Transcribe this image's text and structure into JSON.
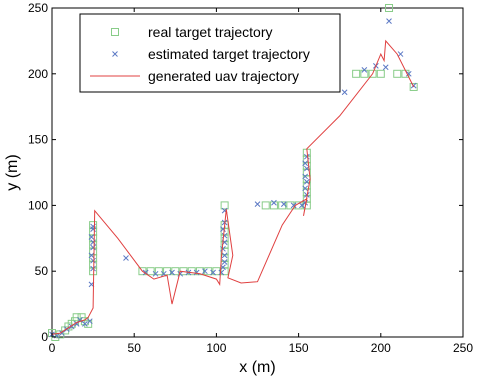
{
  "chart_data": {
    "type": "scatter",
    "xlabel": "x (m)",
    "ylabel": "y (m)",
    "xlim": [
      0,
      250
    ],
    "ylim": [
      0,
      250
    ],
    "xticks": [
      0,
      50,
      100,
      150,
      200,
      250
    ],
    "yticks": [
      0,
      50,
      100,
      150,
      200,
      250
    ],
    "grid": false,
    "legend_position": "top-left",
    "series": [
      {
        "name": "real target trajectory",
        "marker": "square",
        "color": "#88cc88",
        "points": [
          [
            0,
            3
          ],
          [
            2,
            0
          ],
          [
            5,
            2
          ],
          [
            8,
            5
          ],
          [
            10,
            8
          ],
          [
            12,
            10
          ],
          [
            14,
            12
          ],
          [
            15,
            15
          ],
          [
            18,
            15
          ],
          [
            20,
            12
          ],
          [
            22,
            10
          ],
          [
            25,
            50
          ],
          [
            25,
            55
          ],
          [
            25,
            60
          ],
          [
            25,
            65
          ],
          [
            25,
            70
          ],
          [
            25,
            75
          ],
          [
            25,
            80
          ],
          [
            25,
            85
          ],
          [
            55,
            50
          ],
          [
            60,
            50
          ],
          [
            65,
            50
          ],
          [
            70,
            50
          ],
          [
            75,
            50
          ],
          [
            80,
            50
          ],
          [
            85,
            50
          ],
          [
            90,
            50
          ],
          [
            95,
            50
          ],
          [
            100,
            50
          ],
          [
            105,
            50
          ],
          [
            105,
            55
          ],
          [
            105,
            60
          ],
          [
            105,
            65
          ],
          [
            105,
            70
          ],
          [
            105,
            75
          ],
          [
            105,
            80
          ],
          [
            105,
            85
          ],
          [
            105,
            100
          ],
          [
            130,
            100
          ],
          [
            135,
            100
          ],
          [
            140,
            100
          ],
          [
            145,
            100
          ],
          [
            150,
            100
          ],
          [
            155,
            100
          ],
          [
            155,
            105
          ],
          [
            155,
            110
          ],
          [
            155,
            115
          ],
          [
            155,
            120
          ],
          [
            155,
            125
          ],
          [
            155,
            130
          ],
          [
            155,
            135
          ],
          [
            155,
            140
          ],
          [
            185,
            200
          ],
          [
            190,
            200
          ],
          [
            195,
            200
          ],
          [
            200,
            200
          ],
          [
            205,
            250
          ],
          [
            210,
            200
          ],
          [
            215,
            200
          ],
          [
            220,
            190
          ]
        ]
      },
      {
        "name": "estimated target trajectory",
        "marker": "x",
        "color": "#5b78c4",
        "points": [
          [
            0,
            2
          ],
          [
            3,
            1
          ],
          [
            6,
            3
          ],
          [
            9,
            6
          ],
          [
            12,
            8
          ],
          [
            15,
            10
          ],
          [
            17,
            13
          ],
          [
            20,
            10
          ],
          [
            23,
            12
          ],
          [
            24,
            40
          ],
          [
            25,
            52
          ],
          [
            25,
            58
          ],
          [
            24,
            62
          ],
          [
            25,
            68
          ],
          [
            25,
            72
          ],
          [
            24,
            76
          ],
          [
            25,
            82
          ],
          [
            25,
            84
          ],
          [
            45,
            60
          ],
          [
            57,
            49
          ],
          [
            63,
            48
          ],
          [
            68,
            48
          ],
          [
            73,
            49
          ],
          [
            78,
            48
          ],
          [
            83,
            49
          ],
          [
            88,
            49
          ],
          [
            93,
            50
          ],
          [
            98,
            49
          ],
          [
            103,
            49
          ],
          [
            104,
            53
          ],
          [
            105,
            57
          ],
          [
            105,
            62
          ],
          [
            104,
            67
          ],
          [
            105,
            72
          ],
          [
            105,
            77
          ],
          [
            104,
            82
          ],
          [
            105,
            87
          ],
          [
            105,
            96
          ],
          [
            125,
            101
          ],
          [
            135,
            102
          ],
          [
            141,
            101
          ],
          [
            147,
            100
          ],
          [
            152,
            100
          ],
          [
            154,
            102
          ],
          [
            155,
            108
          ],
          [
            154,
            113
          ],
          [
            155,
            118
          ],
          [
            154,
            122
          ],
          [
            155,
            128
          ],
          [
            154,
            132
          ],
          [
            155,
            137
          ],
          [
            178,
            186
          ],
          [
            190,
            203
          ],
          [
            197,
            206
          ],
          [
            203,
            205
          ],
          [
            205,
            240
          ],
          [
            212,
            215
          ],
          [
            217,
            200
          ],
          [
            220,
            191
          ]
        ]
      },
      {
        "name": "generated uav trajectory",
        "marker": "line",
        "color": "#e04040",
        "points": [
          [
            0,
            2
          ],
          [
            5,
            3
          ],
          [
            10,
            7
          ],
          [
            15,
            11
          ],
          [
            20,
            13
          ],
          [
            22,
            15
          ],
          [
            25,
            22
          ],
          [
            26,
            96
          ],
          [
            40,
            75
          ],
          [
            55,
            50
          ],
          [
            62,
            44
          ],
          [
            70,
            47
          ],
          [
            73,
            25
          ],
          [
            78,
            50
          ],
          [
            90,
            48
          ],
          [
            100,
            44
          ],
          [
            102,
            40
          ],
          [
            103,
            60
          ],
          [
            106,
            97
          ],
          [
            110,
            62
          ],
          [
            107,
            45
          ],
          [
            115,
            41
          ],
          [
            125,
            42
          ],
          [
            140,
            85
          ],
          [
            148,
            100
          ],
          [
            155,
            105
          ],
          [
            153,
            92
          ],
          [
            157,
            120
          ],
          [
            155,
            143
          ],
          [
            175,
            168
          ],
          [
            195,
            200
          ],
          [
            200,
            215
          ],
          [
            202,
            210
          ],
          [
            203,
            225
          ],
          [
            210,
            215
          ],
          [
            218,
            195
          ],
          [
            220,
            190
          ]
        ]
      }
    ]
  }
}
